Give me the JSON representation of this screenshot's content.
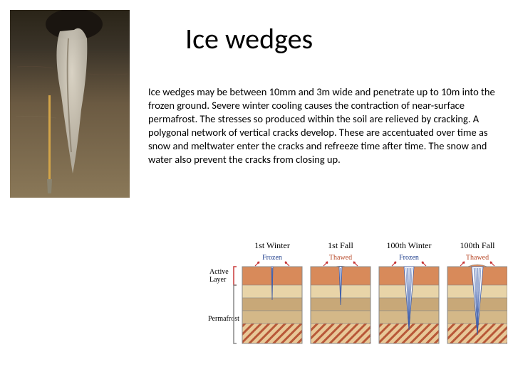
{
  "title": "Ice wedges",
  "body": "Ice wedges may be between 10mm and 3m wide and penetrate up to 10m into the frozen ground. Severe winter cooling causes the contraction of near-surface permafrost. The stresses so produced within the soil are relieved by cracking. A polygonal network of vertical cracks develop. These are accentuated over time as snow and meltwater enter the cracks and refreeze time after time. The snow and water also prevent the cracks from closing up.",
  "photo": {
    "description": "ice-wedge-cross-section-photo",
    "soil_top": "#3a3328",
    "soil_mid": "#6b5a42",
    "soil_light": "#8a7858",
    "wedge_color": "#d8d2c4",
    "shovel_handle": "#d4a548",
    "shovel_blade": "#8a8470"
  },
  "diagram": {
    "side_labels": {
      "active": "Active\nLayer",
      "permafrost": "Permafrost"
    },
    "panels": [
      {
        "title": "1st Winter",
        "state": "Frozen",
        "state_color": "#1a3a8a",
        "crack_width": 2
      },
      {
        "title": "1st Fall",
        "state": "Thawed",
        "state_color": "#b84a2a",
        "crack_width": 4
      },
      {
        "title": "100th Winter",
        "state": "Frozen",
        "state_color": "#1a3a8a",
        "crack_width": 14
      },
      {
        "title": "100th Fall",
        "state": "Thawed",
        "state_color": "#b84a2a",
        "crack_width": 16
      }
    ],
    "colors": {
      "active_layer": "#d88a5a",
      "perm1": "#e8d4a8",
      "perm2": "#c8a878",
      "perm3": "#d4b888",
      "perm4_hatch_bg": "#e8c898",
      "perm4_hatch": "#b85838",
      "ice": "#ffffff",
      "ice_line": "#3a5aa8",
      "arrow": "#c83838",
      "border": "#888888"
    },
    "layer_heights": [
      26,
      18,
      18,
      18,
      28
    ]
  }
}
